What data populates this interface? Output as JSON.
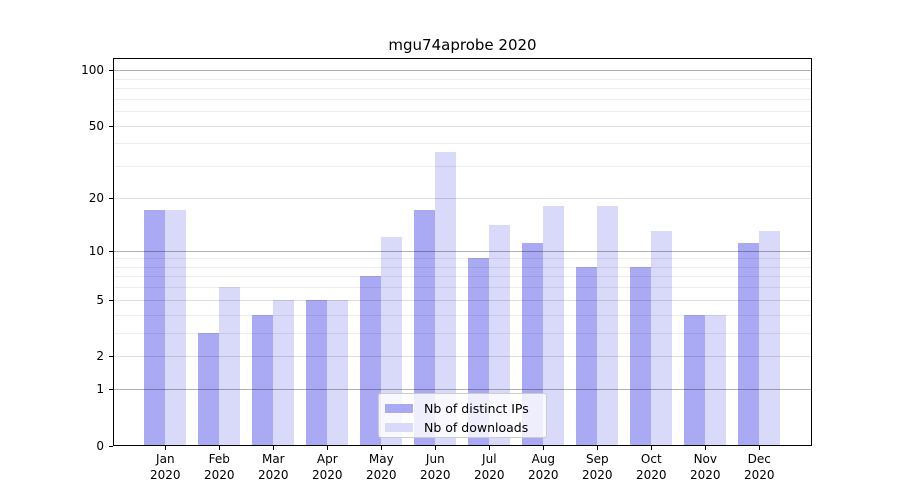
{
  "chart_data": {
    "type": "bar",
    "title": "mgu74aprobe 2020",
    "categories": [
      "Jan",
      "Feb",
      "Mar",
      "Apr",
      "May",
      "Jun",
      "Jul",
      "Aug",
      "Sep",
      "Oct",
      "Nov",
      "Dec"
    ],
    "category_year": "2020",
    "series": [
      {
        "name": "Nb of distinct IPs",
        "color": "#a9a9f4",
        "values": [
          17,
          3,
          4,
          5,
          7,
          17,
          9,
          11,
          8,
          8,
          4,
          11
        ]
      },
      {
        "name": "Nb of downloads",
        "color": "#d9d9f9",
        "values": [
          17,
          6,
          5,
          5,
          12,
          36,
          14,
          18,
          18,
          13,
          4,
          13
        ]
      }
    ],
    "yscale": "log1p",
    "ylim": [
      0,
      116
    ],
    "ytick_values": [
      0,
      1,
      2,
      5,
      10,
      20,
      50,
      100
    ],
    "ytick_labels": [
      "0",
      "1",
      "2",
      "5",
      "10",
      "20",
      "50",
      "100"
    ],
    "decade_grid_values": [
      1,
      10,
      100
    ],
    "minor_grid_values": [
      3,
      4,
      6,
      7,
      8,
      9,
      30,
      40,
      60,
      70,
      80,
      90
    ],
    "grid": true,
    "legend_position": "lower center",
    "background_color": "#ffffff",
    "spine_color": "#000000"
  }
}
